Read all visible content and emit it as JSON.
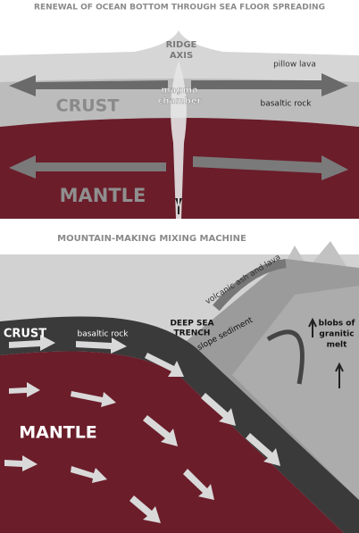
{
  "top_panel": {
    "title": "RENEWAL OF OCEAN BOTTOM THROUGH SEA FLOOR SPREADING",
    "ridge_axis": [
      "RIDGE",
      "AXIS"
    ],
    "pillow_lava": "pillow lava",
    "magma_chamber": [
      "magma",
      "chamber"
    ],
    "basaltic_rock": "basaltic rock",
    "crust": "CRUST",
    "mantle": "MANTLE"
  },
  "bottom_panel": {
    "title": "MOUNTAIN-MAKING MIXING MACHINE",
    "volcanic_ash": "volcanic ash and lava",
    "deep_sea_trench": [
      "DEEP SEA",
      "TRENCH"
    ],
    "slope_sediment": "slope sediment",
    "crust": "CRUST",
    "basaltic_rock": "basaltic rock",
    "granitic_melt": [
      "blobs of",
      "granitic",
      "melt"
    ],
    "mantle": "MANTLE"
  }
}
